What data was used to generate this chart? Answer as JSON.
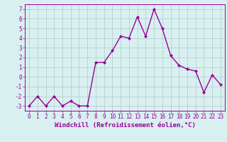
{
  "x": [
    0,
    1,
    2,
    3,
    4,
    5,
    6,
    7,
    8,
    9,
    10,
    11,
    12,
    13,
    14,
    15,
    16,
    17,
    18,
    19,
    20,
    21,
    22,
    23
  ],
  "y": [
    -3,
    -2,
    -3,
    -2,
    -3,
    -2.5,
    -3,
    -3,
    1.5,
    1.5,
    2.7,
    4.2,
    4.0,
    6.2,
    4.2,
    7.0,
    5.0,
    2.2,
    1.2,
    0.8,
    0.6,
    -1.6,
    0.2,
    -0.8
  ],
  "line_color": "#990099",
  "marker": "D",
  "marker_size": 2,
  "bg_color": "#d8f0f0",
  "grid_color": "#b0c8c8",
  "xlabel": "Windchill (Refroidissement éolien,°C)",
  "ylim": [
    -3.5,
    7.5
  ],
  "xlim": [
    -0.5,
    23.5
  ],
  "yticks": [
    -3,
    -2,
    -1,
    0,
    1,
    2,
    3,
    4,
    5,
    6,
    7
  ],
  "xticks": [
    0,
    1,
    2,
    3,
    4,
    5,
    6,
    7,
    8,
    9,
    10,
    11,
    12,
    13,
    14,
    15,
    16,
    17,
    18,
    19,
    20,
    21,
    22,
    23
  ],
  "tick_color": "#990099",
  "tick_fontsize": 5.5,
  "xlabel_fontsize": 6.5,
  "linewidth": 1.0
}
